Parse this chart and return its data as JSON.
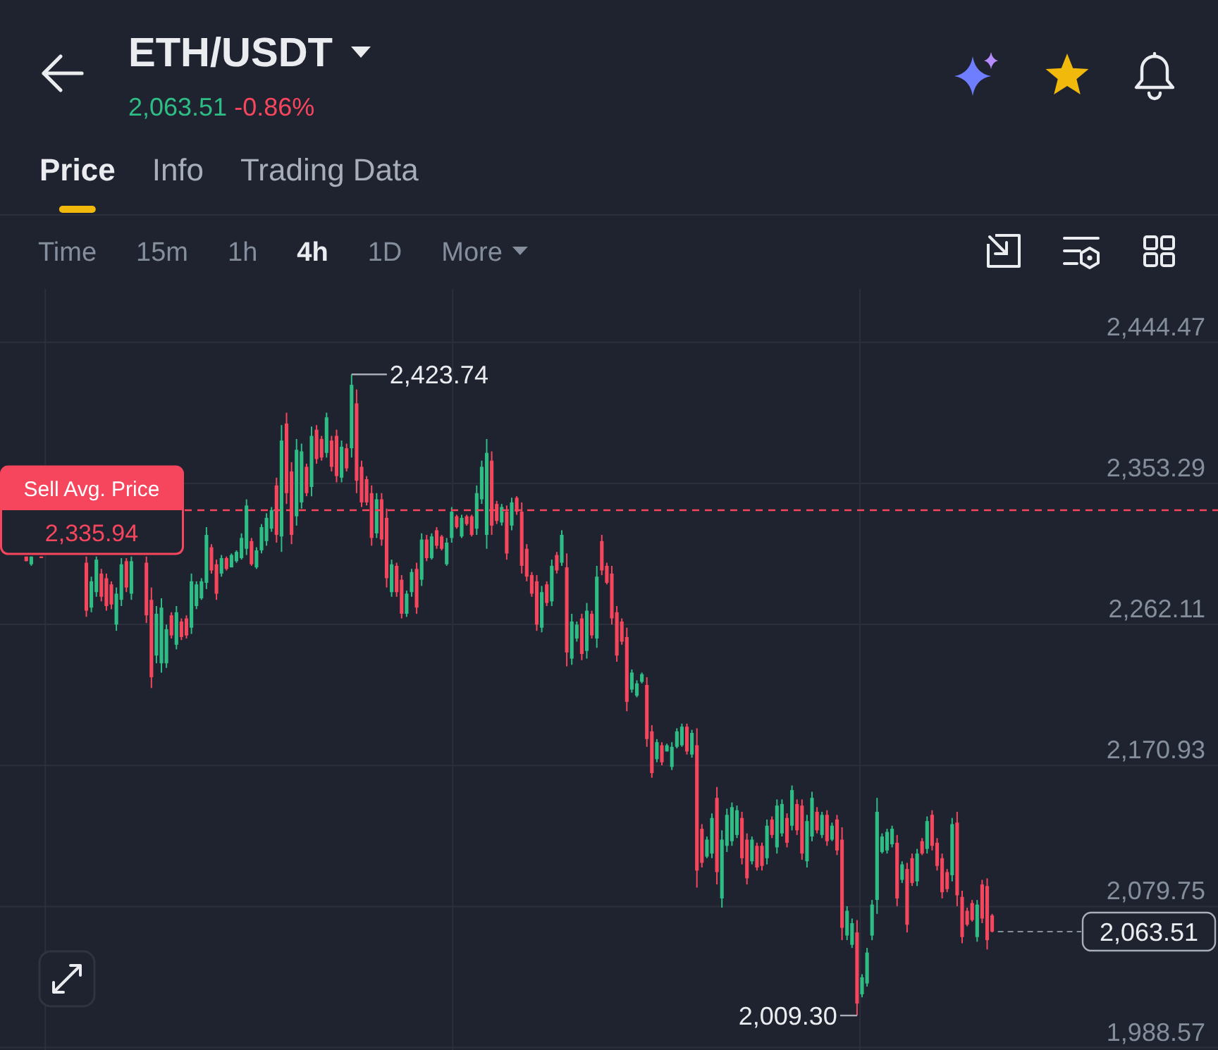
{
  "chart_data": {
    "type": "candlestick",
    "title": "ETH/USDT",
    "subtitle": "2,063.51 -0.86%",
    "categories": [
      null,
      null,
      null,
      null,
      null,
      null,
      null,
      null,
      null,
      null,
      null,
      null,
      null,
      null,
      null,
      null,
      null,
      null,
      null,
      null,
      null,
      null,
      null,
      null,
      null,
      null,
      null,
      null,
      null,
      null,
      null,
      null,
      null,
      null,
      null,
      null,
      null,
      null,
      null,
      null,
      null,
      null,
      null,
      null,
      null,
      null,
      null,
      null,
      null,
      null,
      null,
      null,
      null,
      null,
      null,
      null,
      null,
      null,
      null,
      null,
      null,
      null,
      null,
      null,
      null,
      null,
      null,
      null,
      null,
      null,
      null,
      null,
      null,
      null,
      null,
      null,
      null,
      null,
      null,
      null,
      null,
      null,
      null,
      null,
      null,
      null,
      null,
      null,
      null,
      null,
      null,
      null,
      null,
      null,
      null,
      null,
      null,
      null,
      null,
      null,
      null,
      null,
      null,
      null,
      null,
      null,
      null,
      null,
      null,
      null,
      null,
      null,
      null,
      null,
      null,
      null,
      null,
      null,
      null,
      null,
      null,
      null,
      null,
      null,
      null,
      null,
      null,
      null,
      null,
      null,
      null,
      null,
      null,
      null,
      null,
      null,
      null,
      null,
      null,
      null,
      null,
      null,
      null,
      null,
      null,
      null,
      null,
      null,
      null,
      null,
      null,
      null,
      null,
      null,
      null,
      null,
      null,
      null,
      null,
      null,
      null,
      null,
      null,
      null,
      null,
      null,
      null,
      null,
      null,
      null,
      null,
      null,
      null,
      null,
      null,
      null,
      null,
      null,
      null,
      null,
      null,
      null,
      null,
      null,
      null,
      null,
      null,
      null,
      null,
      null,
      null,
      null,
      null,
      null,
      null,
      null,
      null,
      null,
      null
    ],
    "ohlc": [
      null,
      null,
      null,
      null,
      null,
      [
        2306,
        2306,
        2303,
        2303
      ],
      [
        2301,
        2306,
        2300,
        2306
      ],
      null,
      [
        2306,
        2306,
        2305,
        2305
      ],
      null,
      null,
      null,
      null,
      null,
      null,
      null,
      null,
      [
        2302,
        2306,
        2267,
        2271
      ],
      [
        2273,
        2293,
        2270,
        2290
      ],
      [
        2283,
        2306,
        2280,
        2304
      ],
      [
        2295,
        2298,
        2277,
        2280
      ],
      [
        2292,
        2295,
        2271,
        2274
      ],
      [
        2288,
        2290,
        2272,
        2275
      ],
      [
        2262,
        2286,
        2258,
        2282
      ],
      [
        2278,
        2305,
        2274,
        2301
      ],
      [
        2303,
        2305,
        2283,
        2286
      ],
      [
        2282,
        2306,
        2278,
        2303
      ],
      null,
      null,
      [
        2302,
        2306,
        2263,
        2268
      ],
      [
        2278,
        2286,
        2221,
        2228
      ],
      [
        2242,
        2274,
        2237,
        2269
      ],
      [
        2237,
        2279,
        2231,
        2273
      ],
      [
        2237,
        2262,
        2234,
        2259
      ],
      [
        2268,
        2270,
        2253,
        2255
      ],
      [
        2249,
        2274,
        2246,
        2270
      ],
      [
        2264,
        2266,
        2252,
        2254
      ],
      [
        2266,
        2268,
        2253,
        2255
      ],
      [
        2260,
        2295,
        2256,
        2290
      ],
      [
        2274,
        2290,
        2272,
        2288
      ],
      [
        2279,
        2292,
        2278,
        2290
      ],
      [
        2289,
        2325,
        2285,
        2320
      ],
      [
        2312,
        2314,
        2295,
        2297
      ],
      [
        2301,
        2304,
        2278,
        2282
      ],
      [
        2295,
        2307,
        2293,
        2305
      ],
      [
        2305,
        2306,
        2297,
        2298
      ],
      [
        2299,
        2308,
        2299,
        2307
      ],
      [
        2303,
        2310,
        2302,
        2309
      ],
      [
        2305,
        2321,
        2304,
        2318
      ],
      [
        2311,
        2343,
        2307,
        2339
      ],
      [
        2316,
        2318,
        2300,
        2301
      ],
      [
        2299,
        2312,
        2298,
        2310
      ],
      [
        2310,
        2327,
        2308,
        2325
      ],
      [
        2316,
        2334,
        2313,
        2331
      ],
      [
        2324,
        2338,
        2322,
        2336
      ],
      [
        2352,
        2357,
        2315,
        2320
      ],
      [
        2319,
        2391,
        2309,
        2381
      ],
      [
        2392,
        2399,
        2340,
        2347
      ],
      [
        2361,
        2367,
        2314,
        2320
      ],
      [
        2332,
        2382,
        2326,
        2375
      ],
      [
        2341,
        2379,
        2337,
        2374
      ],
      [
        2364,
        2366,
        2345,
        2347
      ],
      [
        2351,
        2390,
        2345,
        2384
      ],
      [
        2388,
        2391,
        2366,
        2369
      ],
      [
        2382,
        2384,
        2368,
        2370
      ],
      [
        2373,
        2399,
        2370,
        2396
      ],
      [
        2381,
        2384,
        2361,
        2364
      ],
      [
        2384,
        2388,
        2354,
        2358
      ],
      [
        2357,
        2381,
        2354,
        2377
      ],
      [
        2376,
        2379,
        2361,
        2363
      ],
      [
        2376,
        2423.74,
        2370,
        2417
      ],
      [
        2405,
        2414,
        2347,
        2355
      ],
      [
        2364,
        2368,
        2338,
        2341
      ],
      [
        2356,
        2358,
        2339,
        2341
      ],
      [
        2347,
        2352,
        2313,
        2318
      ],
      [
        2321,
        2347,
        2318,
        2343
      ],
      [
        2343,
        2347,
        2313,
        2317
      ],
      [
        2331,
        2337,
        2286,
        2292
      ],
      [
        2283,
        2304,
        2280,
        2301
      ],
      [
        2300,
        2302,
        2280,
        2283
      ],
      [
        2291,
        2294,
        2266,
        2269
      ],
      [
        2269,
        2284,
        2267,
        2282
      ],
      [
        2283,
        2298,
        2280,
        2296
      ],
      [
        2298,
        2302,
        2269,
        2273
      ],
      [
        2291,
        2321,
        2287,
        2317
      ],
      [
        2317,
        2320,
        2303,
        2305
      ],
      [
        2305,
        2321,
        2304,
        2319
      ],
      [
        2323,
        2325,
        2311,
        2313
      ],
      [
        2319,
        2320,
        2310,
        2311
      ],
      [
        2301,
        2318,
        2300,
        2315
      ],
      [
        2318,
        2338,
        2315,
        2335
      ],
      [
        2332,
        2333,
        2324,
        2325
      ],
      [
        2319,
        2333,
        2318,
        2331
      ],
      [
        2332,
        2333,
        2326,
        2327
      ],
      [
        2332,
        2333,
        2319,
        2320
      ],
      [
        2324,
        2352,
        2320,
        2347
      ],
      [
        2343,
        2368,
        2340,
        2364
      ],
      [
        2320,
        2382,
        2311,
        2373
      ],
      [
        2368,
        2374,
        2320,
        2326
      ],
      [
        2340,
        2342,
        2327,
        2329
      ],
      [
        2328,
        2340,
        2326,
        2338
      ],
      [
        2335,
        2339,
        2304,
        2308
      ],
      [
        2326,
        2344,
        2323,
        2341
      ],
      [
        2344,
        2345,
        2333,
        2335
      ],
      [
        2335,
        2341,
        2295,
        2300
      ],
      [
        2311,
        2314,
        2290,
        2293
      ],
      [
        2294,
        2296,
        2280,
        2282
      ],
      [
        2290,
        2294,
        2258,
        2262
      ],
      [
        2260,
        2287,
        2257,
        2283
      ],
      [
        2288,
        2290,
        2274,
        2276
      ],
      [
        2277,
        2304,
        2274,
        2300
      ],
      [
        2307,
        2309,
        2295,
        2297
      ],
      [
        2302,
        2323,
        2300,
        2320
      ],
      [
        2299,
        2308,
        2235,
        2244
      ],
      [
        2240,
        2269,
        2236,
        2264
      ],
      [
        2253,
        2264,
        2251,
        2262
      ],
      [
        2266,
        2269,
        2239,
        2243
      ],
      [
        2245,
        2276,
        2240,
        2271
      ],
      [
        2269,
        2271,
        2253,
        2255
      ],
      [
        2253,
        2300,
        2247,
        2293
      ],
      [
        2316,
        2320,
        2294,
        2297
      ],
      [
        2300,
        2302,
        2288,
        2289
      ],
      [
        2295,
        2300,
        2262,
        2266
      ],
      [
        2270,
        2274,
        2238,
        2242
      ],
      [
        2264,
        2266,
        2249,
        2251
      ],
      [
        2254,
        2260,
        2206,
        2212
      ],
      [
        2220,
        2233,
        2218,
        2231
      ],
      [
        2216,
        2226,
        2215,
        2224
      ],
      [
        2225,
        2231,
        2224,
        2230
      ],
      [
        2223,
        2228,
        2183,
        2188
      ],
      [
        2193,
        2197,
        2163,
        2166
      ],
      [
        2175,
        2188,
        2173,
        2186
      ],
      [
        2184,
        2186,
        2171,
        2173
      ],
      [
        2180,
        2185,
        2180,
        2184
      ],
      [
        2170,
        2186,
        2168,
        2183
      ],
      [
        2183,
        2195,
        2182,
        2193
      ],
      [
        2184,
        2198,
        2183,
        2196
      ],
      [
        2196,
        2198,
        2178,
        2180
      ],
      [
        2178,
        2194,
        2176,
        2192
      ],
      [
        2184,
        2195,
        2092,
        2103
      ],
      [
        2130,
        2133,
        2105,
        2108
      ],
      [
        2112,
        2125,
        2111,
        2123
      ],
      [
        2114,
        2140,
        2111,
        2137
      ],
      [
        2150,
        2157,
        2094,
        2102
      ],
      [
        2085,
        2129,
        2079,
        2123
      ],
      [
        2119,
        2143,
        2115,
        2139
      ],
      [
        2122,
        2147,
        2119,
        2144
      ],
      [
        2126,
        2145,
        2124,
        2142
      ],
      [
        2137,
        2141,
        2107,
        2111
      ],
      [
        2123,
        2127,
        2094,
        2098
      ],
      [
        2109,
        2125,
        2107,
        2123
      ],
      [
        2119,
        2121,
        2103,
        2105
      ],
      [
        2119,
        2121,
        2103,
        2106
      ],
      [
        2111,
        2136,
        2107,
        2132
      ],
      [
        2136,
        2138,
        2124,
        2126
      ],
      [
        2118,
        2149,
        2114,
        2145
      ],
      [
        2127,
        2149,
        2125,
        2146
      ],
      [
        2137,
        2140,
        2118,
        2121
      ],
      [
        2132,
        2158,
        2129,
        2155
      ],
      [
        2146,
        2149,
        2126,
        2129
      ],
      [
        2145,
        2149,
        2110,
        2114
      ],
      [
        2109,
        2139,
        2105,
        2135
      ],
      [
        2125,
        2154,
        2122,
        2150
      ],
      [
        2141,
        2144,
        2127,
        2129
      ],
      [
        2126,
        2141,
        2124,
        2139
      ],
      [
        2139,
        2142,
        2119,
        2122
      ],
      [
        2123,
        2134,
        2122,
        2132
      ],
      [
        2136,
        2139,
        2113,
        2116
      ],
      [
        2123,
        2131,
        2058,
        2066
      ],
      [
        2061,
        2080,
        2058,
        2077
      ],
      [
        2055,
        2072,
        2053,
        2069
      ],
      [
        2063,
        2071,
        2009.3,
        2017
      ],
      [
        2023,
        2036,
        2021,
        2034
      ],
      [
        2030,
        2053,
        2028,
        2050
      ],
      [
        2061,
        2084,
        2058,
        2081
      ],
      [
        2084,
        2150,
        2075,
        2141
      ],
      [
        2115,
        2127,
        2114,
        2125
      ],
      [
        2116,
        2130,
        2114,
        2128
      ],
      [
        2120,
        2132,
        2118,
        2130
      ],
      [
        2121,
        2126,
        2080,
        2085
      ],
      [
        2097,
        2109,
        2095,
        2107
      ],
      [
        2104,
        2108,
        2063,
        2068
      ],
      [
        2111,
        2114,
        2093,
        2095
      ],
      [
        2096,
        2117,
        2093,
        2114
      ],
      [
        2122,
        2124,
        2113,
        2114
      ],
      [
        2117,
        2138,
        2114,
        2135
      ],
      [
        2139,
        2142,
        2116,
        2119
      ],
      [
        2121,
        2124,
        2103,
        2106
      ],
      [
        2111,
        2114,
        2085,
        2089
      ],
      [
        2102,
        2104,
        2089,
        2091
      ],
      [
        2100,
        2137,
        2096,
        2133
      ],
      [
        2134,
        2141,
        2080,
        2087
      ],
      [
        2086,
        2090,
        2056,
        2060
      ],
      [
        2077,
        2079,
        2067,
        2068
      ],
      [
        2082,
        2084,
        2070,
        2071
      ],
      [
        2060,
        2084,
        2057,
        2081
      ],
      [
        2094,
        2097,
        2069,
        2072
      ],
      [
        2093,
        2098,
        2052,
        2058
      ],
      [
        2074,
        2075,
        2063,
        2063.51
      ]
    ],
    "ylim": [
      1987,
      2479
    ],
    "yticks": [
      {
        "value": 2444.47,
        "label": "2,444.47"
      },
      {
        "value": 2353.29,
        "label": "2,353.29"
      },
      {
        "value": 2262.11,
        "label": "2,262.11"
      },
      {
        "value": 2170.93,
        "label": "2,170.93"
      },
      {
        "value": 2079.75,
        "label": "2,079.75"
      },
      {
        "value": 1988.57,
        "label": "1,988.57"
      }
    ],
    "grid": true,
    "ref_lines": [
      {
        "axis": "y",
        "value": 2335.94,
        "label": "Sell Avg. Price",
        "color": "#f6465d",
        "line_style": "dashed"
      }
    ],
    "annotations": [
      "Price",
      "Info",
      "Trading Data",
      "Time",
      "15m",
      "1h",
      "4h",
      "1D",
      "More",
      "2,423.74",
      "2,009.30",
      "2,063.51",
      "2,335.94"
    ]
  }
}
